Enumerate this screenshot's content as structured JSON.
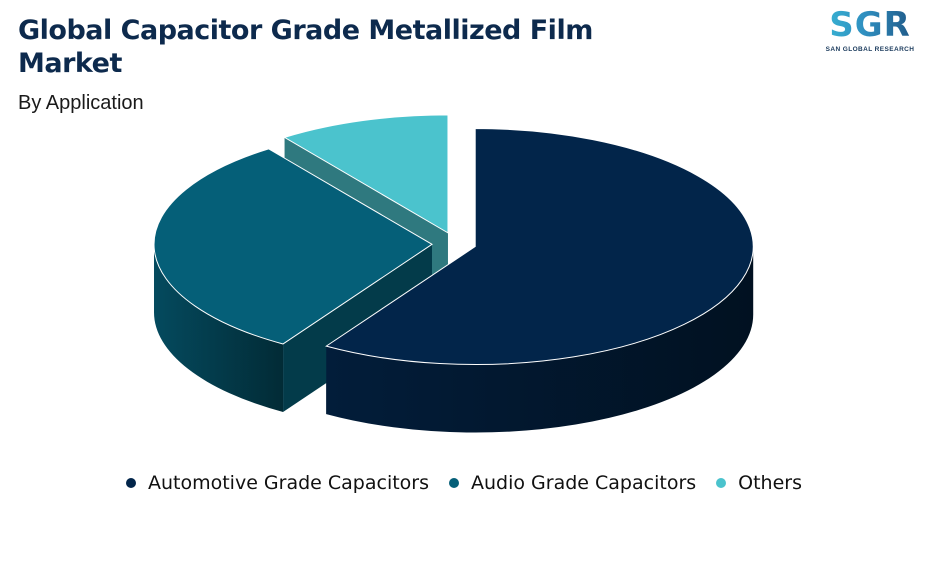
{
  "header": {
    "title": "Global Capacitor Grade Metallized Film Market",
    "subtitle": "By Application"
  },
  "logo": {
    "mark": "SGR",
    "name": "SAN GLOBAL RESEARCH"
  },
  "chart_data": {
    "type": "pie",
    "style": "3d-exploded",
    "title": "Global Capacitor Grade Metallized Film Market",
    "subtitle": "By Application",
    "categories": [
      "Automotive Grade Capacitors",
      "Audio Grade Capacitors",
      "Others"
    ],
    "values": [
      59,
      31,
      10
    ],
    "unit": "%",
    "colors": [
      "#02254a",
      "#055f78",
      "#4bc3cd"
    ],
    "legend_position": "bottom"
  }
}
